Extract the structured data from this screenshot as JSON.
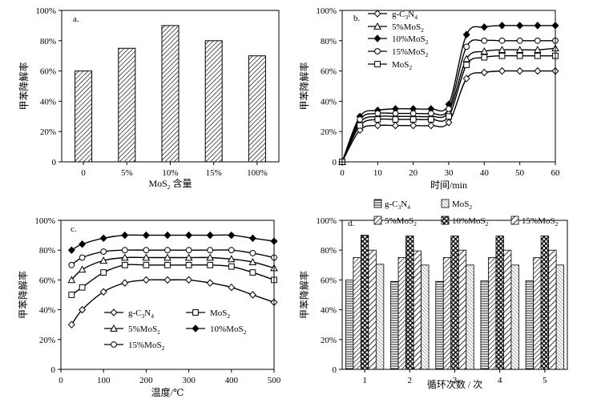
{
  "chart_data": [
    {
      "type": "bar",
      "panel_label": "a.",
      "xlabel": "MoS₂ 含量",
      "ylabel": "甲苯降解率",
      "categories": [
        "0",
        "5%",
        "10%",
        "15%",
        "100%"
      ],
      "values": [
        60,
        75,
        90,
        80,
        70
      ],
      "ylim": [
        0,
        100
      ],
      "yticks": [
        "0",
        "20%",
        "40%",
        "60%",
        "80%",
        "100%"
      ]
    },
    {
      "type": "line",
      "panel_label": "b.",
      "xlabel": "时间/min",
      "ylabel": "甲苯降解率",
      "xlim": [
        0,
        60
      ],
      "ylim": [
        0,
        100
      ],
      "xticks": [
        "0",
        "10",
        "20",
        "30",
        "40",
        "50",
        "60"
      ],
      "yticks": [
        "0",
        "20%",
        "40%",
        "60%",
        "80%",
        "100%"
      ],
      "legend_position": "top-left",
      "x": [
        0,
        5,
        10,
        15,
        20,
        25,
        30,
        35,
        40,
        45,
        50,
        55,
        60
      ],
      "series": [
        {
          "name": "g-C3N4",
          "legend_base": "g-C",
          "legend_mid": "N",
          "legend_sub1": "3",
          "legend_sub2": "4",
          "marker": "diamond-open",
          "values": [
            0,
            21,
            24,
            24,
            24,
            24,
            26,
            55,
            59,
            60,
            60,
            60,
            60
          ]
        },
        {
          "name": "5%MoS2",
          "legend_base": "5%MoS",
          "legend_sub1": "2",
          "marker": "triangle-open",
          "values": [
            0,
            26,
            30,
            30,
            30,
            30,
            33,
            68,
            73,
            74,
            74,
            74,
            75
          ]
        },
        {
          "name": "10%MoS2",
          "legend_base": "10%MoS",
          "legend_sub1": "2",
          "marker": "diamond-filled",
          "values": [
            0,
            30,
            34,
            35,
            35,
            35,
            38,
            84,
            89,
            90,
            90,
            90,
            90
          ]
        },
        {
          "name": "15%MoS2",
          "legend_base": "15%MoS",
          "legend_sub1": "2",
          "marker": "circle-open",
          "values": [
            0,
            28,
            32,
            32,
            32,
            32,
            35,
            76,
            80,
            80,
            80,
            80,
            80
          ]
        },
        {
          "name": "MoS2",
          "legend_base": "MoS",
          "legend_sub1": "2",
          "marker": "square-open",
          "values": [
            0,
            24,
            28,
            28,
            28,
            28,
            30,
            64,
            69,
            70,
            70,
            70,
            70
          ]
        }
      ]
    },
    {
      "type": "line",
      "panel_label": "c.",
      "xlabel": "温度/℃",
      "ylabel": "甲苯降解率",
      "xlim": [
        0,
        500
      ],
      "ylim": [
        0,
        100
      ],
      "xticks": [
        "0",
        "100",
        "200",
        "300",
        "400",
        "500"
      ],
      "yticks": [
        "0",
        "20%",
        "40%",
        "60%",
        "80%",
        "100%"
      ],
      "legend_position": "bottom-left",
      "x": [
        25,
        50,
        100,
        150,
        200,
        250,
        300,
        350,
        400,
        450,
        500
      ],
      "series": [
        {
          "name": "g-C3N4",
          "legend_base": "g-C",
          "legend_mid": "N",
          "legend_sub1": "3",
          "legend_sub2": "4",
          "marker": "diamond-open",
          "values": [
            30,
            40,
            52,
            58,
            60,
            60,
            60,
            58,
            55,
            50,
            45
          ]
        },
        {
          "name": "MoS2",
          "legend_base": "MoS",
          "legend_sub1": "2",
          "marker": "square-open",
          "values": [
            50,
            55,
            65,
            70,
            70,
            70,
            70,
            70,
            69,
            65,
            60
          ]
        },
        {
          "name": "5%MoS2",
          "legend_base": "5%MoS",
          "legend_sub1": "2",
          "marker": "triangle-open",
          "values": [
            60,
            67,
            73,
            75,
            75,
            75,
            75,
            75,
            74,
            72,
            68
          ]
        },
        {
          "name": "10%MoS2",
          "legend_base": "10%MoS",
          "legend_sub1": "2",
          "marker": "diamond-filled",
          "values": [
            80,
            84,
            88,
            90,
            90,
            90,
            90,
            90,
            90,
            88,
            86
          ]
        },
        {
          "name": "15%MoS2",
          "legend_base": "15%MoS",
          "legend_sub1": "2",
          "marker": "circle-open",
          "values": [
            70,
            75,
            79,
            80,
            80,
            80,
            80,
            80,
            80,
            78,
            75
          ]
        }
      ]
    },
    {
      "type": "bar",
      "panel_label": "d.",
      "xlabel": "循环次数 / 次",
      "ylabel": "甲苯降解率",
      "categories": [
        "1",
        "2",
        "3",
        "4",
        "5"
      ],
      "ylim": [
        0,
        100
      ],
      "yticks": [
        "0",
        "20%",
        "40%",
        "60%",
        "80%",
        "100%"
      ],
      "legend_position": "top",
      "series": [
        {
          "name": "g-C3N4",
          "legend_base": "g-C",
          "legend_mid": "N",
          "legend_sub1": "3",
          "legend_sub2": "4",
          "pattern": "hlines",
          "values": [
            60,
            59,
            59,
            59.5,
            59.5
          ]
        },
        {
          "name": "5%MoS2",
          "legend_base": "5%MoS",
          "legend_sub1": "2",
          "pattern": "diag",
          "values": [
            75,
            75,
            75,
            75,
            75
          ]
        },
        {
          "name": "10%MoS2",
          "legend_base": "10%MoS",
          "legend_sub1": "2",
          "pattern": "xhatch",
          "values": [
            90,
            89.5,
            89.5,
            89.5,
            89.5
          ]
        },
        {
          "name": "15%MoS2",
          "legend_base": "15%MoS",
          "legend_sub1": "2",
          "pattern": "wide",
          "values": [
            80,
            79.5,
            80,
            80,
            80
          ]
        },
        {
          "name": "MoS2",
          "legend_base": "MoS",
          "legend_sub1": "2",
          "pattern": "fine",
          "values": [
            70.5,
            70,
            70,
            70,
            70
          ]
        }
      ]
    }
  ]
}
